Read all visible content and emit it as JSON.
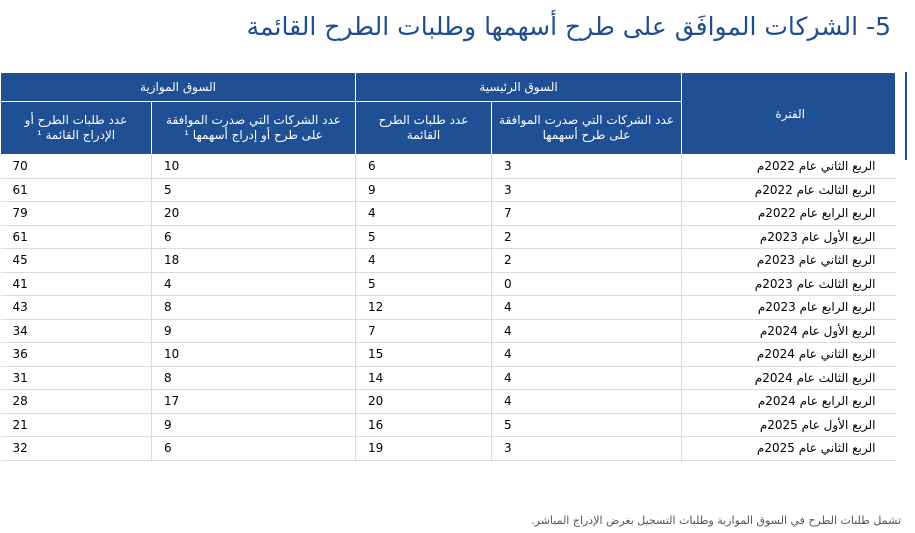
{
  "title": "5- الشركات الموافَق على طرح أسهمها وطلبات الطرح القائمة",
  "header": {
    "period": "الفترة",
    "main_market": "السوق الرئيسية",
    "parallel_market": "السوق الموازية",
    "main_approved": "عدد الشركات التي صدرت الموافقة على طرح أسهمها",
    "main_pending": "عدد طلبات الطرح القائمة",
    "par_approved": "عدد الشركات التي صدرت الموافقة على طرح أو إدراج أسهمها ¹",
    "par_pending": "عدد طلبات الطرح أو الإدراج القائمة ¹"
  },
  "rows": [
    {
      "period": "الربع الثاني عام 2022م",
      "main_approved": "3",
      "main_pending": "6",
      "par_approved": "10",
      "par_pending": "70"
    },
    {
      "period": "الربع الثالث عام 2022م",
      "main_approved": "3",
      "main_pending": "9",
      "par_approved": "5",
      "par_pending": "61"
    },
    {
      "period": "الربع الرابع عام 2022م",
      "main_approved": "7",
      "main_pending": "4",
      "par_approved": "20",
      "par_pending": "79"
    },
    {
      "period": "الربع الأول عام 2023م",
      "main_approved": "2",
      "main_pending": "5",
      "par_approved": "6",
      "par_pending": "61"
    },
    {
      "period": "الربع الثاني عام  2023م",
      "main_approved": "2",
      "main_pending": "4",
      "par_approved": "18",
      "par_pending": "45"
    },
    {
      "period": "الربع الثالث عام 2023م",
      "main_approved": "0",
      "main_pending": "5",
      "par_approved": "4",
      "par_pending": "41"
    },
    {
      "period": "الربع الرابع عام 2023م",
      "main_approved": "4",
      "main_pending": "12",
      "par_approved": "8",
      "par_pending": "43"
    },
    {
      "period": "الربع الأول عام 2024م",
      "main_approved": "4",
      "main_pending": "7",
      "par_approved": "9",
      "par_pending": "34"
    },
    {
      "period": "الربع الثاني عام 2024م",
      "main_approved": "4",
      "main_pending": "15",
      "par_approved": "10",
      "par_pending": "36"
    },
    {
      "period": "الربع الثالث عام 2024م",
      "main_approved": "4",
      "main_pending": "14",
      "par_approved": "8",
      "par_pending": "31"
    },
    {
      "period": "الربع الرابع عام 2024م",
      "main_approved": "4",
      "main_pending": "20",
      "par_approved": "17",
      "par_pending": "28"
    },
    {
      "period": "الربع الأول عام 2025م",
      "main_approved": "5",
      "main_pending": "16",
      "par_approved": "9",
      "par_pending": "21"
    },
    {
      "period": "الربع الثاني عام 2025م",
      "main_approved": "3",
      "main_pending": "19",
      "par_approved": "6",
      "par_pending": "32"
    }
  ],
  "footnote": "تشمل طلبات الطرح في السوق الموازية وطلبات التسجيل بغرض الإدراج المباشر."
}
